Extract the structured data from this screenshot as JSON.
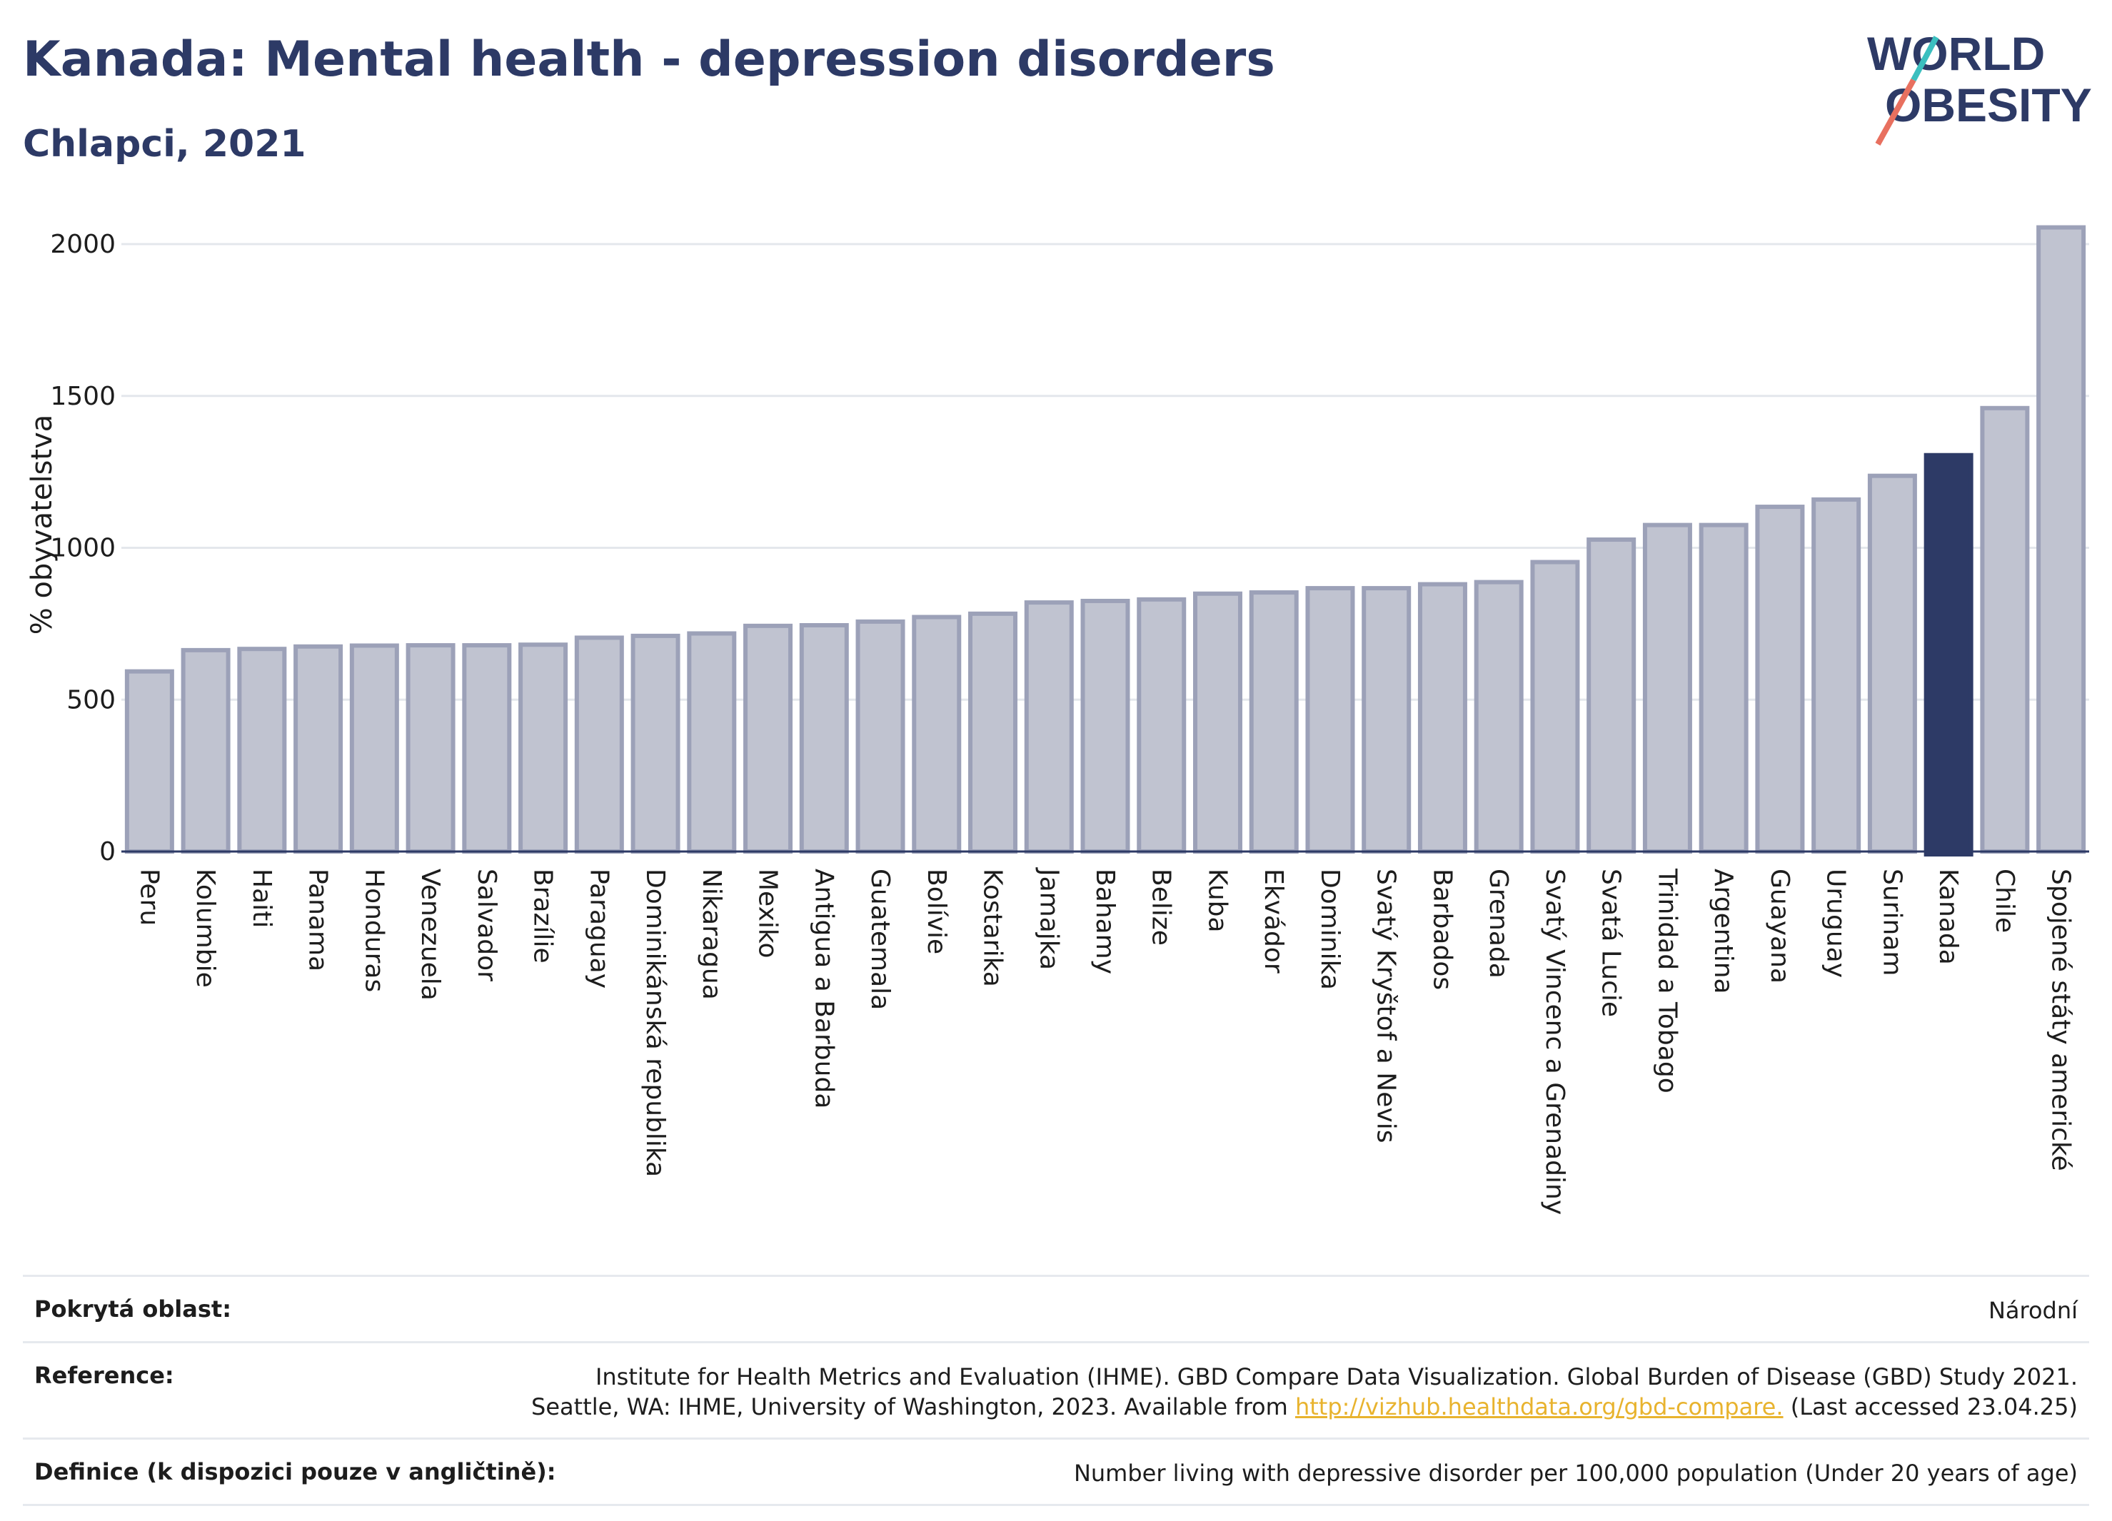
{
  "header": {
    "title": "Kanada: Mental health - depression disorders",
    "subtitle": "Chlapci, 2021",
    "logo_line1": "WORLD",
    "logo_line2": "OBESITY"
  },
  "chart_data": {
    "type": "bar",
    "title": "Kanada: Mental health - depression disorders",
    "subtitle": "Chlapci, 2021",
    "ylabel": "% obyvatelstva",
    "xlabel": "",
    "ylim": [
      0,
      2100
    ],
    "yticks": [
      0,
      500,
      1000,
      1500,
      2000
    ],
    "grid": true,
    "highlight": "Kanada",
    "colors": {
      "default": "#c0c3d0",
      "default_border": "#9ca1b8",
      "highlight": "#2d3a66"
    },
    "categories": [
      "Peru",
      "Kolumbie",
      "Haiti",
      "Panama",
      "Honduras",
      "Venezuela",
      "Salvador",
      "Brazílie",
      "Paraguay",
      "Dominikánská republika",
      "Nikaragua",
      "Mexiko",
      "Antigua a Barbuda",
      "Guatemala",
      "Bolívie",
      "Kostarika",
      "Jamajka",
      "Bahamy",
      "Belize",
      "Kuba",
      "Ekvádor",
      "Dominika",
      "Svatý Kryštof a Nevis",
      "Barbados",
      "Grenada",
      "Svatý Vincenc a Grenadiny",
      "Svatá Lucie",
      "Trinidad a Tobago",
      "Argentina",
      "Guayana",
      "Uruguay",
      "Surinam",
      "Kanada",
      "Chile",
      "Spojené státy americké"
    ],
    "values": [
      593,
      663,
      667,
      675,
      678,
      679,
      679,
      681,
      704,
      710,
      718,
      743,
      745,
      757,
      772,
      783,
      820,
      825,
      830,
      849,
      853,
      867,
      867,
      880,
      887,
      953,
      1027,
      1075,
      1075,
      1135,
      1159,
      1237,
      1305,
      1460,
      2055
    ]
  },
  "footer": {
    "rows": [
      {
        "label": "Pokrytá oblast:",
        "value": "Národní"
      },
      {
        "label": "Reference:",
        "line1": "Institute for Health Metrics and Evaluation (IHME). GBD Compare Data Visualization. Global Burden of Disease (GBD) Study 2021.",
        "line2_pre": "Seattle, WA: IHME, University of Washington, 2023. Available from ",
        "link": "http://vizhub.healthdata.org/gbd-compare.",
        "line2_post": " (Last accessed 23.04.25)"
      },
      {
        "label": "Definice (k dispozici pouze v angličtině):",
        "value": "Number living with depressive disorder per 100,000 population (Under 20 years of age)"
      }
    ]
  }
}
